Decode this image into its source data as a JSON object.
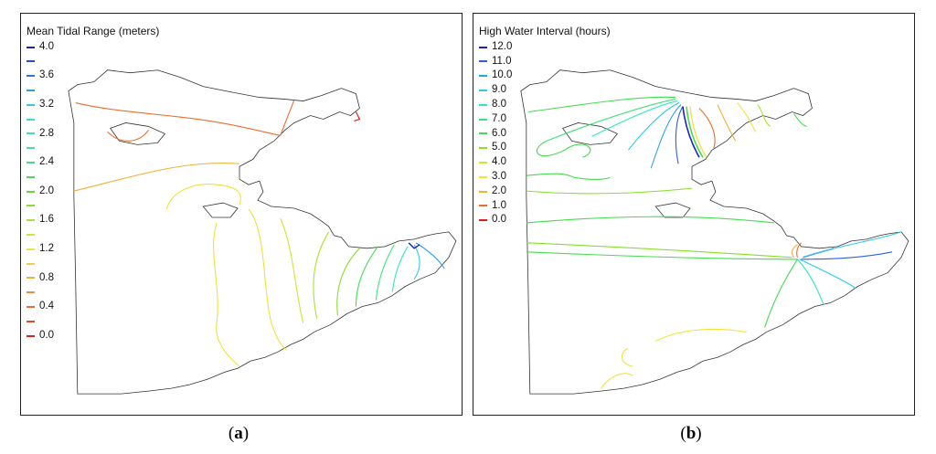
{
  "panel_a": {
    "legend_title": "Mean Tidal Range (meters)",
    "legend": [
      {
        "label": "4.0",
        "color": "#1a1fc8"
      },
      {
        "label": "",
        "color": "#1f4fd6"
      },
      {
        "label": "3.6",
        "color": "#2b78e4"
      },
      {
        "label": "",
        "color": "#2aa3ef"
      },
      {
        "label": "3.2",
        "color": "#2ccbe8"
      },
      {
        "label": "",
        "color": "#2fe0d6"
      },
      {
        "label": "2.8",
        "color": "#31e6bd"
      },
      {
        "label": "",
        "color": "#37e69a"
      },
      {
        "label": "2.4",
        "color": "#3fe276"
      },
      {
        "label": "",
        "color": "#46dc4f"
      },
      {
        "label": "2.0",
        "color": "#5fdc2f"
      },
      {
        "label": "",
        "color": "#86df2c"
      },
      {
        "label": "1.6",
        "color": "#aee22b"
      },
      {
        "label": "",
        "color": "#d3e42d"
      },
      {
        "label": "1.2",
        "color": "#f0e23a"
      },
      {
        "label": "",
        "color": "#f3cf3a"
      },
      {
        "label": "0.8",
        "color": "#f2b137"
      },
      {
        "label": "",
        "color": "#f08f33"
      },
      {
        "label": "0.4",
        "color": "#ec6c2d"
      },
      {
        "label": "",
        "color": "#e84526"
      },
      {
        "label": "0.0",
        "color": "#e21f1f"
      }
    ],
    "caption_letter": "a"
  },
  "panel_b": {
    "legend_title": "High Water Interval (hours)",
    "legend": [
      {
        "label": "12.0",
        "color": "#1a1fc8"
      },
      {
        "label": "11.0",
        "color": "#2b61dc"
      },
      {
        "label": "10.0",
        "color": "#2aa3ef"
      },
      {
        "label": "9.0",
        "color": "#2ccbe8"
      },
      {
        "label": "8.0",
        "color": "#31e6bd"
      },
      {
        "label": "7.0",
        "color": "#3fe276"
      },
      {
        "label": "6.0",
        "color": "#46dc4f"
      },
      {
        "label": "5.0",
        "color": "#86df2c"
      },
      {
        "label": "4.0",
        "color": "#d3e42d"
      },
      {
        "label": "3.0",
        "color": "#f0e23a"
      },
      {
        "label": "2.0",
        "color": "#f2b137"
      },
      {
        "label": "1.0",
        "color": "#ec6c2d"
      },
      {
        "label": "0.0",
        "color": "#e21f1f"
      }
    ],
    "caption_letter": "b"
  },
  "caption_paren_open": "(",
  "caption_paren_close": ")"
}
